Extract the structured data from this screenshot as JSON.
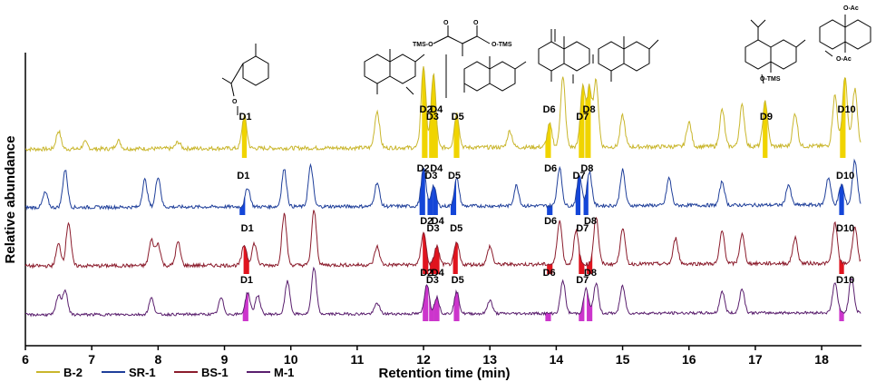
{
  "chart_data": {
    "type": "line",
    "title": "",
    "xlabel": "Retention time (min)",
    "ylabel": "Relative abundance",
    "xlim": [
      6,
      18.6
    ],
    "x_ticks": [
      "6",
      "7",
      "8",
      "9",
      "10",
      "11",
      "12",
      "13",
      "14",
      "15",
      "16",
      "17",
      "18"
    ],
    "series": [
      {
        "name": "B-2",
        "color": "#c9b62c",
        "fill": "#f0d400",
        "peaks": [
          [
            6.5,
            0.22
          ],
          [
            6.9,
            0.08
          ],
          [
            7.4,
            0.1
          ],
          [
            8.3,
            0.08
          ],
          [
            9.3,
            0.4
          ],
          [
            11.3,
            0.45
          ],
          [
            12.0,
            1.0
          ],
          [
            12.15,
            0.9
          ],
          [
            12.5,
            0.42
          ],
          [
            13.3,
            0.2
          ],
          [
            13.9,
            0.28
          ],
          [
            14.1,
            0.85
          ],
          [
            14.4,
            0.75
          ],
          [
            14.5,
            0.72
          ],
          [
            14.6,
            0.8
          ],
          [
            15.0,
            0.38
          ],
          [
            16.0,
            0.3
          ],
          [
            16.5,
            0.45
          ],
          [
            16.8,
            0.5
          ],
          [
            17.15,
            0.55
          ],
          [
            17.6,
            0.4
          ],
          [
            18.2,
            0.62
          ],
          [
            18.35,
            0.85
          ],
          [
            18.5,
            0.7
          ]
        ],
        "labeled": [
          [
            "D1",
            9.3
          ],
          [
            "D2",
            12.02
          ],
          [
            "D3",
            12.12
          ],
          [
            "D4",
            12.18
          ],
          [
            "D5",
            12.5
          ],
          [
            "D6",
            13.88
          ],
          [
            "D7",
            14.38
          ],
          [
            "D8",
            14.48
          ],
          [
            "D9",
            17.15
          ],
          [
            "D10",
            18.32
          ]
        ]
      },
      {
        "name": "SR-1",
        "color": "#1f3f9a",
        "fill": "#1446d8",
        "peaks": [
          [
            6.6,
            0.55
          ],
          [
            6.3,
            0.22
          ],
          [
            7.8,
            0.4
          ],
          [
            8.0,
            0.45
          ],
          [
            9.35,
            0.28
          ],
          [
            9.9,
            0.55
          ],
          [
            10.3,
            0.6
          ],
          [
            11.3,
            0.35
          ],
          [
            12.0,
            0.55
          ],
          [
            12.15,
            0.3
          ],
          [
            12.5,
            0.4
          ],
          [
            13.4,
            0.3
          ],
          [
            14.05,
            0.55
          ],
          [
            14.35,
            0.45
          ],
          [
            14.5,
            0.5
          ],
          [
            15.0,
            0.52
          ],
          [
            15.7,
            0.4
          ],
          [
            16.5,
            0.35
          ],
          [
            17.5,
            0.3
          ],
          [
            18.1,
            0.4
          ],
          [
            18.3,
            0.3
          ],
          [
            18.5,
            0.65
          ]
        ],
        "labeled": [
          [
            "D1",
            9.27
          ],
          [
            "D2",
            11.98
          ],
          [
            "D3",
            12.1
          ],
          [
            "D4",
            12.18
          ],
          [
            "D5",
            12.45
          ],
          [
            "D6",
            13.9
          ],
          [
            "D7",
            14.33
          ],
          [
            "D8",
            14.45
          ],
          [
            "D10",
            18.3
          ]
        ]
      },
      {
        "name": "BS-1",
        "color": "#8b1c2c",
        "fill": "#e0141e",
        "peaks": [
          [
            6.5,
            0.3
          ],
          [
            6.65,
            0.6
          ],
          [
            7.9,
            0.35
          ],
          [
            8.0,
            0.3
          ],
          [
            8.3,
            0.32
          ],
          [
            9.3,
            0.28
          ],
          [
            9.45,
            0.3
          ],
          [
            9.9,
            0.7
          ],
          [
            10.35,
            0.75
          ],
          [
            11.3,
            0.25
          ],
          [
            12.0,
            0.45
          ],
          [
            12.2,
            0.25
          ],
          [
            12.5,
            0.3
          ],
          [
            13.0,
            0.25
          ],
          [
            14.05,
            0.6
          ],
          [
            14.3,
            0.45
          ],
          [
            14.6,
            0.65
          ],
          [
            15.0,
            0.5
          ],
          [
            15.8,
            0.35
          ],
          [
            16.5,
            0.45
          ],
          [
            16.8,
            0.4
          ],
          [
            17.6,
            0.35
          ],
          [
            18.2,
            0.55
          ],
          [
            18.5,
            0.5
          ]
        ],
        "labeled": [
          [
            "D1",
            9.33
          ],
          [
            "D2",
            12.03
          ],
          [
            "D3",
            12.13
          ],
          [
            "D4",
            12.2
          ],
          [
            "D5",
            12.48
          ],
          [
            "D6",
            13.9
          ],
          [
            "D7",
            14.38
          ],
          [
            "D8",
            14.5
          ],
          [
            "D10",
            18.3
          ]
        ]
      },
      {
        "name": "M-1",
        "color": "#5a1f6e",
        "fill": "#cc35cc",
        "peaks": [
          [
            6.5,
            0.35
          ],
          [
            6.6,
            0.45
          ],
          [
            7.9,
            0.3
          ],
          [
            8.95,
            0.3
          ],
          [
            9.35,
            0.4
          ],
          [
            9.5,
            0.35
          ],
          [
            9.95,
            0.6
          ],
          [
            10.35,
            0.85
          ],
          [
            11.3,
            0.2
          ],
          [
            12.05,
            0.55
          ],
          [
            12.2,
            0.3
          ],
          [
            12.5,
            0.4
          ],
          [
            13.0,
            0.25
          ],
          [
            14.1,
            0.6
          ],
          [
            14.45,
            0.45
          ],
          [
            14.6,
            0.55
          ],
          [
            15.0,
            0.5
          ],
          [
            16.5,
            0.4
          ],
          [
            16.8,
            0.45
          ],
          [
            18.2,
            0.55
          ],
          [
            18.45,
            0.65
          ]
        ],
        "labeled": [
          [
            "D1",
            9.32
          ],
          [
            "D2",
            12.03
          ],
          [
            "D3",
            12.12
          ],
          [
            "D4",
            12.2
          ],
          [
            "D5",
            12.5
          ],
          [
            "D6",
            13.88
          ],
          [
            "D7",
            14.38
          ],
          [
            "D8",
            14.5
          ],
          [
            "D10",
            18.3
          ]
        ]
      }
    ],
    "structure_labels": [
      "TMS-O",
      "O",
      "O",
      "O-TMS",
      "O-TMS",
      "O-Ac",
      "O-Ac"
    ],
    "legend_position": "bottom-left"
  }
}
